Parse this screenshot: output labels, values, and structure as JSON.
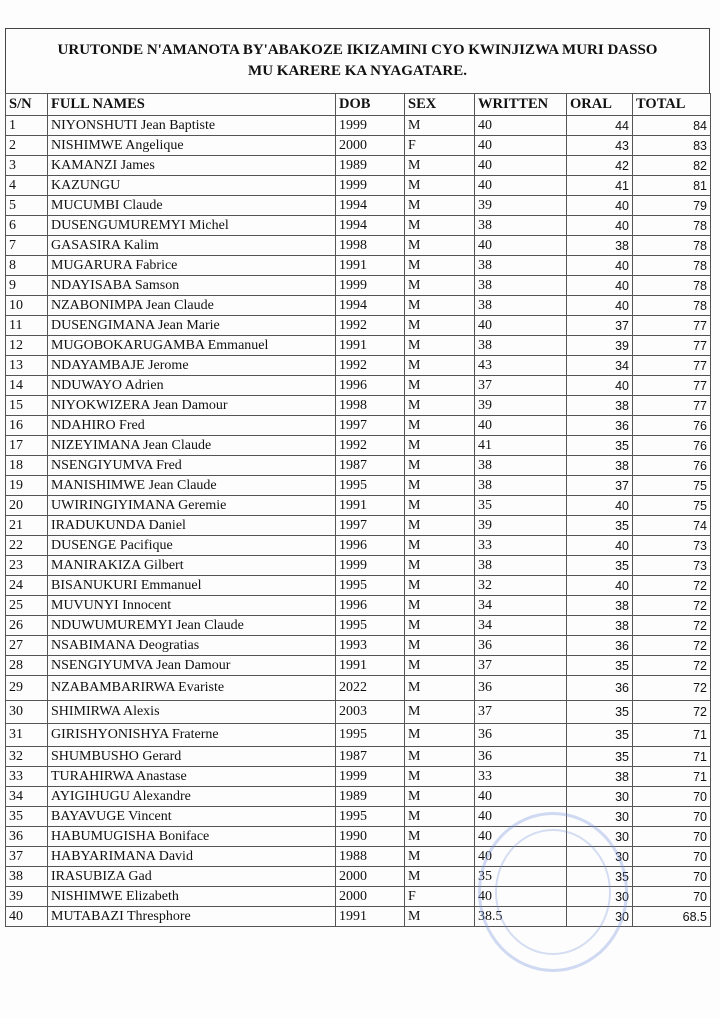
{
  "title_line1": "URUTONDE N'AMANOTA BY'ABAKOZE IKIZAMINI CYO  KWINJIZWA MURI DASSO",
  "title_line2": "MU KARERE KA NYAGATARE.",
  "columns": [
    "S/N",
    "FULL NAMES",
    "DOB",
    "SEX",
    "WRITTEN",
    "ORAL",
    "TOTAL"
  ],
  "rows": [
    [
      "1",
      "NIYONSHUTI Jean Baptiste",
      "1999",
      "M",
      "40",
      "44",
      "84"
    ],
    [
      "2",
      "NISHIMWE Angelique",
      "2000",
      "F",
      "40",
      "43",
      "83"
    ],
    [
      "3",
      "KAMANZI James",
      "1989",
      "M",
      "40",
      "42",
      "82"
    ],
    [
      "4",
      "KAZUNGU",
      "1999",
      "M",
      "40",
      "41",
      "81"
    ],
    [
      "5",
      "MUCUMBI Claude",
      "1994",
      "M",
      "39",
      "40",
      "79"
    ],
    [
      "6",
      "DUSENGUMUREMYI Michel",
      "1994",
      "M",
      "38",
      "40",
      "78"
    ],
    [
      "7",
      "GASASIRA Kalim",
      "1998",
      "M",
      "40",
      "38",
      "78"
    ],
    [
      "8",
      "MUGARURA Fabrice",
      "1991",
      "M",
      "38",
      "40",
      "78"
    ],
    [
      "9",
      "NDAYISABA Samson",
      "1999",
      "M",
      "38",
      "40",
      "78"
    ],
    [
      "10",
      "NZABONIMPA Jean Claude",
      "1994",
      "M",
      "38",
      "40",
      "78"
    ],
    [
      "11",
      "DUSENGIMANA Jean Marie",
      "1992",
      "M",
      "40",
      "37",
      "77"
    ],
    [
      "12",
      "MUGOBOKARUGAMBA Emmanuel",
      "1991",
      "M",
      "38",
      "39",
      "77"
    ],
    [
      "13",
      "NDAYAMBAJE Jerome",
      "1992",
      "M",
      "43",
      "34",
      "77"
    ],
    [
      "14",
      "NDUWAYO Adrien",
      "1996",
      "M",
      "37",
      "40",
      "77"
    ],
    [
      "15",
      "NIYOKWIZERA Jean Damour",
      "1998",
      "M",
      "39",
      "38",
      "77"
    ],
    [
      "16",
      "NDAHIRO Fred",
      "1997",
      "M",
      "40",
      "36",
      "76"
    ],
    [
      "17",
      "NIZEYIMANA Jean Claude",
      "1992",
      "M",
      "41",
      "35",
      "76"
    ],
    [
      "18",
      "NSENGIYUMVA Fred",
      "1987",
      "M",
      "38",
      "38",
      "76"
    ],
    [
      "19",
      "MANISHIMWE Jean Claude",
      "1995",
      "M",
      "38",
      "37",
      "75"
    ],
    [
      "20",
      "UWIRINGIYIMANA Geremie",
      "1991",
      "M",
      "35",
      "40",
      "75"
    ],
    [
      "21",
      "IRADUKUNDA Daniel",
      "1997",
      "M",
      "39",
      "35",
      "74"
    ],
    [
      "22",
      "DUSENGE Pacifique",
      "1996",
      "M",
      "33",
      "40",
      "73"
    ],
    [
      "23",
      "MANIRAKIZA Gilbert",
      "1999",
      "M",
      "38",
      "35",
      "73"
    ],
    [
      "24",
      "BISANUKURI Emmanuel",
      "1995",
      "M",
      "32",
      "40",
      "72"
    ],
    [
      "25",
      "MUVUNYI Innocent",
      "1996",
      "M",
      "34",
      "38",
      "72"
    ],
    [
      "26",
      "NDUWUMUREMYI Jean Claude",
      "1995",
      "M",
      "34",
      "38",
      "72"
    ],
    [
      "27",
      "NSABIMANA Deogratias",
      "1993",
      "M",
      "36",
      "36",
      "72"
    ],
    [
      "28",
      "NSENGIYUMVA Jean Damour",
      "1991",
      "M",
      "37",
      "35",
      "72"
    ],
    [
      "29",
      "NZABAMBARIRWA Evariste",
      "2022",
      "M",
      "36",
      "36",
      "72"
    ],
    [
      "30",
      "SHIMIRWA Alexis",
      "2003",
      "M",
      "37",
      "35",
      "72"
    ],
    [
      "31",
      "GIRISHYONISHYA  Fraterne",
      "1995",
      "M",
      "36",
      "35",
      "71"
    ],
    [
      "32",
      "SHUMBUSHO Gerard",
      "1987",
      "M",
      "36",
      "35",
      "71"
    ],
    [
      "33",
      "TURAHIRWA Anastase",
      "1999",
      "M",
      "33",
      "38",
      "71"
    ],
    [
      "34",
      "AYIGIHUGU Alexandre",
      "1989",
      "M",
      "40",
      "30",
      "70"
    ],
    [
      "35",
      "BAYAVUGE Vincent",
      "1995",
      "M",
      "40",
      "30",
      "70"
    ],
    [
      "36",
      "HABUMUGISHA Boniface",
      "1990",
      "M",
      "40",
      "30",
      "70"
    ],
    [
      "37",
      "HABYARIMANA David",
      "1988",
      "M",
      "40",
      "30",
      "70"
    ],
    [
      "38",
      "IRASUBIZA Gad",
      "2000",
      "M",
      "35",
      "35",
      "70"
    ],
    [
      "39",
      "NISHIMWE Elizabeth",
      "2000",
      "F",
      "40",
      "30",
      "70"
    ],
    [
      "40",
      "MUTABAZI Thresphore",
      "1991",
      "M",
      "38.5",
      "30",
      "68.5"
    ]
  ],
  "stamp": {
    "color": "#7896dc",
    "icon": "official-seal"
  }
}
